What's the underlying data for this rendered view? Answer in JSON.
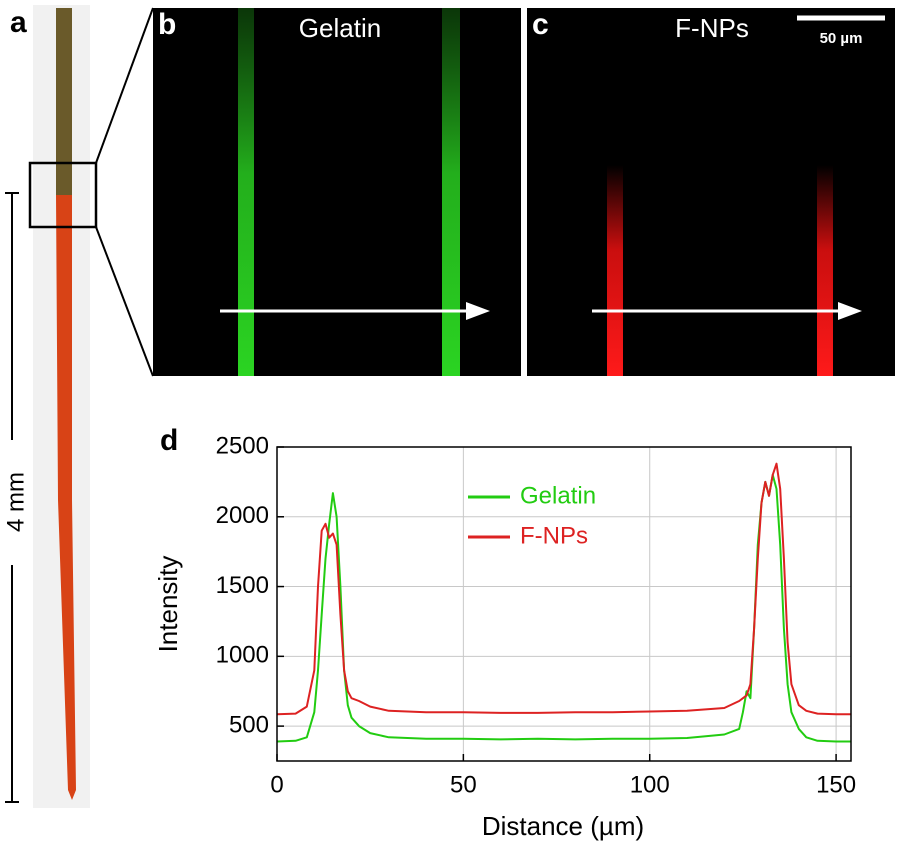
{
  "panels": {
    "a": {
      "label": "a",
      "scale_label": "4 mm"
    },
    "b": {
      "label": "b",
      "title": "Gelatin"
    },
    "c": {
      "label": "c",
      "title": "F-NPs",
      "scale_label": "50 µm"
    }
  },
  "chart_data": {
    "type": "line",
    "panel_label": "d",
    "xlabel": "Distance (µm)",
    "ylabel": "Intensity",
    "x": [
      0,
      5,
      8,
      10,
      11,
      12,
      13,
      14,
      15,
      16,
      17,
      18,
      19,
      20,
      22,
      25,
      30,
      40,
      50,
      60,
      70,
      80,
      90,
      100,
      110,
      120,
      124,
      125,
      126,
      127,
      128,
      129,
      130,
      131,
      132,
      133,
      134,
      135,
      136,
      137,
      138,
      140,
      142,
      145,
      150,
      154
    ],
    "series": [
      {
        "name": "Gelatin",
        "color": "#22cc11",
        "values": [
          390,
          395,
          420,
          600,
          900,
          1300,
          1700,
          1950,
          2170,
          2000,
          1500,
          900,
          650,
          560,
          500,
          450,
          420,
          410,
          410,
          405,
          410,
          405,
          410,
          410,
          415,
          440,
          480,
          600,
          750,
          700,
          1200,
          1800,
          2100,
          2250,
          2150,
          2300,
          2200,
          1800,
          1200,
          800,
          600,
          480,
          420,
          395,
          390,
          390
        ]
      },
      {
        "name": "F-NPs",
        "color": "#dd2222",
        "values": [
          585,
          590,
          640,
          900,
          1500,
          1900,
          1950,
          1850,
          1880,
          1800,
          1300,
          900,
          750,
          700,
          680,
          640,
          610,
          600,
          600,
          595,
          595,
          600,
          600,
          605,
          610,
          630,
          680,
          700,
          720,
          800,
          1200,
          1700,
          2100,
          2250,
          2150,
          2300,
          2380,
          2200,
          1700,
          1100,
          800,
          650,
          610,
          590,
          585,
          585
        ]
      }
    ],
    "xlim": [
      0,
      154
    ],
    "ylim": [
      250,
      2500
    ],
    "xticks": [
      0,
      50,
      100,
      150
    ],
    "yticks": [
      500,
      1000,
      1500,
      2000,
      2500
    ],
    "grid": true
  }
}
